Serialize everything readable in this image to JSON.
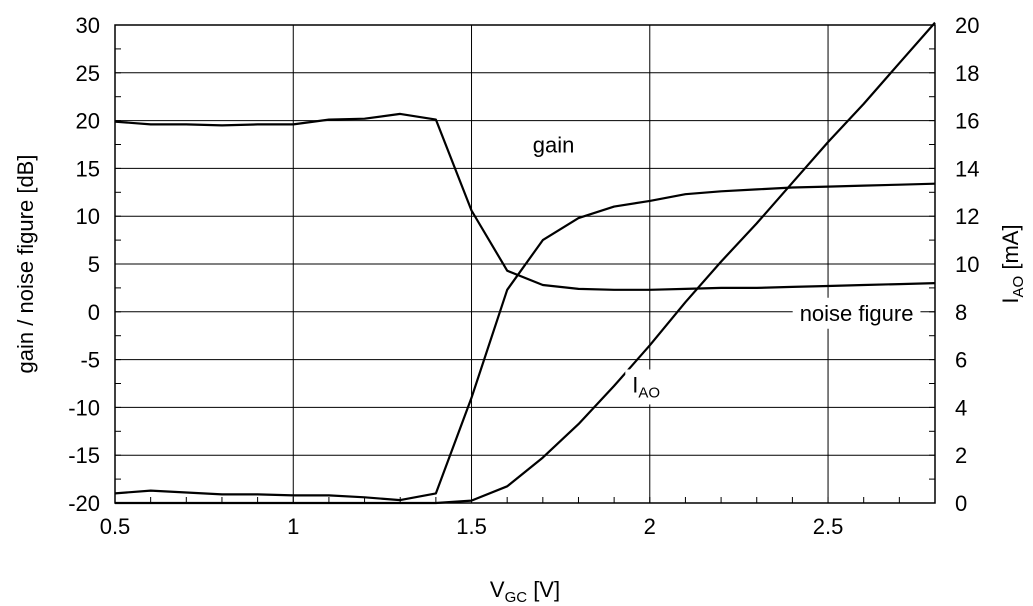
{
  "chart_data": {
    "type": "line",
    "title": "",
    "xlabel": {
      "main": "V",
      "sub": "GC",
      "unit": " [V]"
    },
    "ylabel_left": "gain / noise figure [dB]",
    "ylabel_right": {
      "main": "I",
      "sub": "AO",
      "unit": " [mA]"
    },
    "xlim": [
      0.5,
      2.8
    ],
    "ylim_left": [
      -20,
      30
    ],
    "ylim_right": [
      0,
      20
    ],
    "x_ticks": [
      0.5,
      1,
      1.5,
      2,
      2.5
    ],
    "x_tick_labels": [
      "0.5",
      "1",
      "1.5",
      "2",
      "2.5"
    ],
    "y_left_ticks": [
      -20,
      -15,
      -10,
      -5,
      0,
      5,
      10,
      15,
      20,
      25,
      30
    ],
    "y_left_tick_labels": [
      "-20",
      "-15",
      "-10",
      "-5",
      "0",
      "5",
      "10",
      "15",
      "20",
      "25",
      "30"
    ],
    "y_right_ticks": [
      0,
      2,
      4,
      6,
      8,
      10,
      12,
      14,
      16,
      18,
      20
    ],
    "y_right_tick_labels": [
      "0",
      "2",
      "4",
      "6",
      "8",
      "10",
      "12",
      "14",
      "16",
      "18",
      "20"
    ],
    "grid": true,
    "series": [
      {
        "name": "gain",
        "axis": "left",
        "x": [
          0.5,
          0.6,
          0.7,
          0.8,
          0.9,
          1.0,
          1.1,
          1.2,
          1.3,
          1.4,
          1.5,
          1.6,
          1.7,
          1.8,
          1.9,
          2.0,
          2.1,
          2.2,
          2.3,
          2.4,
          2.5,
          2.6,
          2.7,
          2.8
        ],
        "values": [
          -19.0,
          -18.7,
          -18.9,
          -19.1,
          -19.1,
          -19.2,
          -19.2,
          -19.4,
          -19.7,
          -19.0,
          -9.0,
          2.3,
          7.5,
          9.8,
          11.0,
          11.6,
          12.3,
          12.6,
          12.8,
          13.0,
          13.1,
          13.2,
          13.3,
          13.4
        ]
      },
      {
        "name": "noise figure",
        "axis": "left",
        "x": [
          0.5,
          0.6,
          0.7,
          0.8,
          0.9,
          1.0,
          1.1,
          1.2,
          1.3,
          1.4,
          1.5,
          1.6,
          1.7,
          1.8,
          1.9,
          2.0,
          2.1,
          2.2,
          2.3,
          2.4,
          2.5,
          2.6,
          2.7,
          2.8
        ],
        "values": [
          19.9,
          19.6,
          19.6,
          19.5,
          19.6,
          19.6,
          20.1,
          20.2,
          20.7,
          20.1,
          10.6,
          4.3,
          2.8,
          2.4,
          2.3,
          2.3,
          2.4,
          2.5,
          2.5,
          2.6,
          2.7,
          2.8,
          2.9,
          3.0
        ]
      },
      {
        "name": "I",
        "name_sub": "AO",
        "axis": "right",
        "x": [
          0.5,
          1.0,
          1.4,
          1.5,
          1.6,
          1.7,
          1.8,
          1.9,
          2.0,
          2.1,
          2.2,
          2.3,
          2.4,
          2.5,
          2.6,
          2.7,
          2.8
        ],
        "values": [
          0.0,
          0.0,
          0.0,
          0.1,
          0.7,
          1.9,
          3.3,
          4.9,
          6.6,
          8.4,
          10.1,
          11.7,
          13.4,
          15.1,
          16.7,
          18.4,
          20.1
        ]
      }
    ],
    "annotations": [
      {
        "series": "gain",
        "text": "gain",
        "x": 1.73,
        "y": 17.5
      },
      {
        "series": "noise figure",
        "text": "noise figure",
        "x": 2.58,
        "y": -0.1
      },
      {
        "series": "I",
        "text": "I",
        "sub": "AO",
        "x": 1.99,
        "y": -7.6
      }
    ]
  }
}
